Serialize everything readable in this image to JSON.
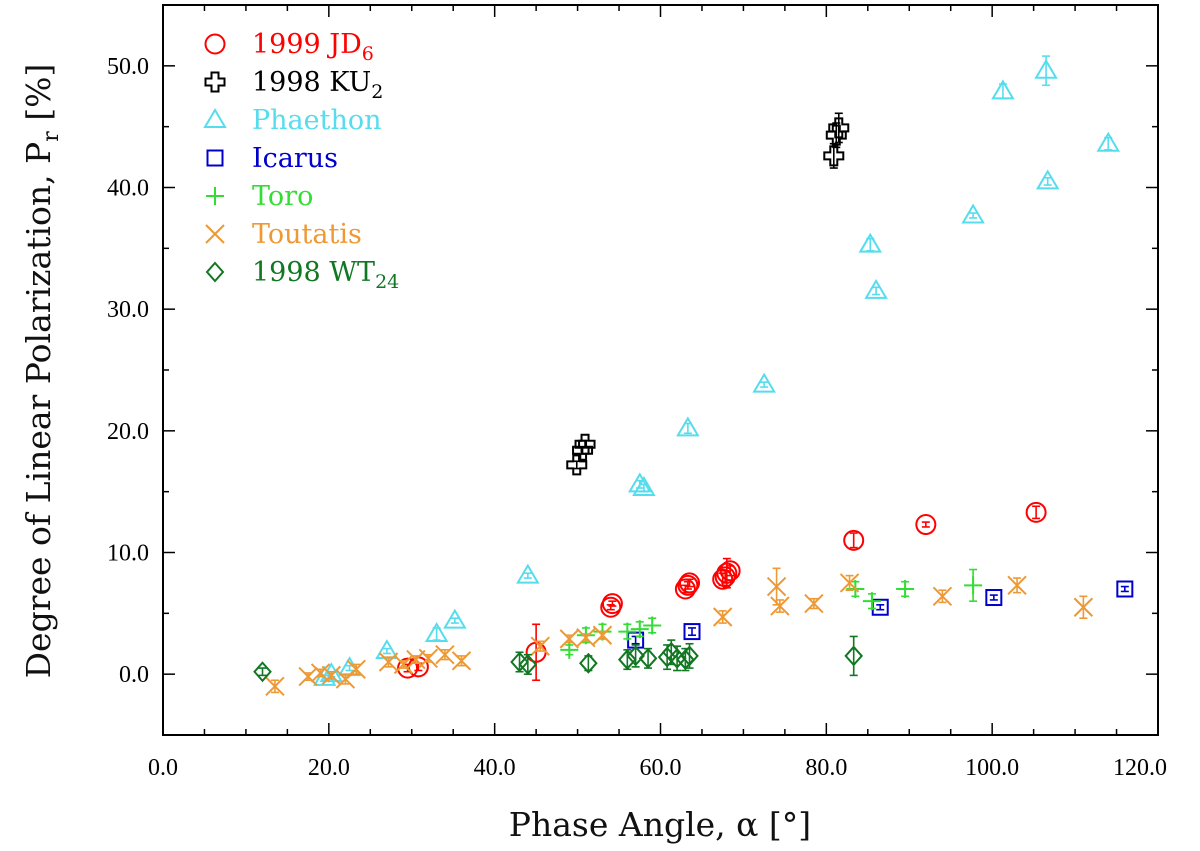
{
  "chart_data": {
    "type": "scatter",
    "xlabel": "Phase Angle, α [°]",
    "ylabel": "Degree of Linear Polarization, P",
    "ylabel_sub": "r",
    "ylabel_suffix": " [%]",
    "xlim": [
      0,
      120
    ],
    "ylim": [
      -5,
      55
    ],
    "xticks": [
      0,
      20,
      40,
      60,
      80,
      100,
      120
    ],
    "xtick_labels": [
      "0.0",
      "20.0",
      "40.0",
      "60.0",
      "80.0",
      "100.0",
      "120.0"
    ],
    "x_minor_step": 5,
    "yticks": [
      0,
      10,
      20,
      30,
      40,
      50
    ],
    "ytick_labels": [
      "0.0",
      "10.0",
      "20.0",
      "30.0",
      "40.0",
      "50.0"
    ],
    "y_minor_step": 5,
    "grid": false,
    "legend_position": "top-left",
    "series": [
      {
        "name": "1999 JD",
        "name_sub": "6",
        "marker": "circle",
        "color": "#ff0000",
        "x": [
          29.5,
          30.8,
          45.0,
          54.0,
          54.2,
          63.0,
          63.3,
          63.5,
          67.5,
          67.8,
          68.0,
          68.4,
          83.3,
          92.0,
          105.3
        ],
        "y": [
          0.5,
          0.6,
          1.8,
          5.5,
          5.8,
          7.0,
          7.3,
          7.5,
          7.8,
          8.0,
          8.3,
          8.5,
          11.0,
          12.3,
          13.3
        ],
        "err": [
          0.3,
          0.3,
          2.3,
          0.2,
          0.2,
          0.3,
          0.3,
          0.3,
          0.5,
          0.5,
          1.2,
          0.4,
          0.6,
          0.2,
          0.5
        ]
      },
      {
        "name": "1998 KU",
        "name_sub": "2",
        "marker": "cross",
        "color": "#000000",
        "x": [
          49.9,
          50.6,
          50.9,
          80.9,
          81.2,
          81.5
        ],
        "y": [
          17.2,
          18.4,
          18.9,
          42.6,
          44.3,
          44.9
        ],
        "err": [
          0.3,
          0.3,
          0.3,
          1.0,
          1.0,
          1.2
        ]
      },
      {
        "name": "Phaethon",
        "name_sub": "",
        "marker": "triangle",
        "color": "#55ddee",
        "x": [
          19.5,
          20.3,
          22.5,
          27.0,
          33.0,
          35.2,
          44.0,
          57.5,
          58.0,
          63.3,
          72.5,
          85.3,
          86.0,
          97.7,
          101.3,
          106.5,
          106.7,
          114.0
        ],
        "y": [
          -0.3,
          0.0,
          0.5,
          1.9,
          3.3,
          4.4,
          8.1,
          15.6,
          15.3,
          20.2,
          23.8,
          35.3,
          31.5,
          37.7,
          47.9,
          49.6,
          40.5,
          43.6
        ],
        "err": [
          0.2,
          0.2,
          0.2,
          0.2,
          0.5,
          0.2,
          0.2,
          0.3,
          0.3,
          0.4,
          0.2,
          0.5,
          0.3,
          0.2,
          0.6,
          1.2,
          0.3,
          0.5
        ]
      },
      {
        "name": "Icarus",
        "name_sub": "",
        "marker": "square",
        "color": "#0000cc",
        "x": [
          57.0,
          63.8,
          86.5,
          100.2,
          116.0
        ],
        "y": [
          2.8,
          3.5,
          5.5,
          6.3,
          7.0
        ],
        "err": [
          0.3,
          0.3,
          0.2,
          0.2,
          0.2
        ]
      },
      {
        "name": "Toro",
        "name_sub": "",
        "marker": "plus",
        "color": "#33dd33",
        "x": [
          49.0,
          51.0,
          53.0,
          56.0,
          57.5,
          59.0,
          83.5,
          85.5,
          89.5,
          97.7
        ],
        "y": [
          2.0,
          3.2,
          3.5,
          3.5,
          3.7,
          4.0,
          7.0,
          6.0,
          7.0,
          7.3
        ],
        "err": [
          0.4,
          0.6,
          0.6,
          0.6,
          0.6,
          0.6,
          0.6,
          0.6,
          0.6,
          1.3
        ]
      },
      {
        "name": "Toutatis",
        "name_sub": "",
        "marker": "x",
        "color": "#ee9933",
        "x": [
          13.5,
          17.5,
          19.0,
          20.3,
          22.0,
          23.3,
          27.2,
          29.0,
          30.5,
          32.0,
          34.0,
          36.0,
          45.5,
          49.0,
          51.0,
          53.0,
          67.5,
          74.0,
          74.4,
          78.5,
          82.8,
          94.0,
          103.0,
          111.0
        ],
        "y": [
          -1.0,
          -0.2,
          0.1,
          -0.1,
          -0.4,
          0.4,
          1.0,
          0.8,
          1.2,
          1.3,
          1.6,
          1.1,
          2.3,
          2.9,
          3.0,
          3.2,
          4.7,
          7.2,
          5.6,
          5.8,
          7.5,
          6.4,
          7.3,
          5.5
        ],
        "err": [
          0.5,
          0.3,
          0.3,
          0.3,
          0.4,
          0.4,
          0.4,
          0.3,
          0.3,
          0.3,
          0.4,
          0.4,
          0.4,
          0.3,
          0.3,
          0.3,
          0.5,
          1.5,
          0.5,
          0.4,
          0.6,
          0.5,
          0.6,
          0.9
        ]
      },
      {
        "name": "1998 WT",
        "name_sub": "24",
        "marker": "diamond",
        "color": "#117722",
        "x": [
          12.0,
          43.0,
          44.0,
          51.3,
          56.0,
          57.0,
          58.5,
          60.8,
          61.3,
          62.0,
          63.0,
          63.5,
          83.3
        ],
        "y": [
          0.2,
          1.0,
          0.8,
          0.9,
          1.2,
          1.5,
          1.3,
          1.4,
          1.8,
          1.3,
          1.2,
          1.5,
          1.5
        ],
        "err": [
          0.3,
          0.8,
          0.8,
          0.6,
          0.8,
          0.9,
          0.8,
          1.0,
          1.0,
          1.0,
          0.9,
          1.0,
          1.6
        ]
      }
    ]
  }
}
